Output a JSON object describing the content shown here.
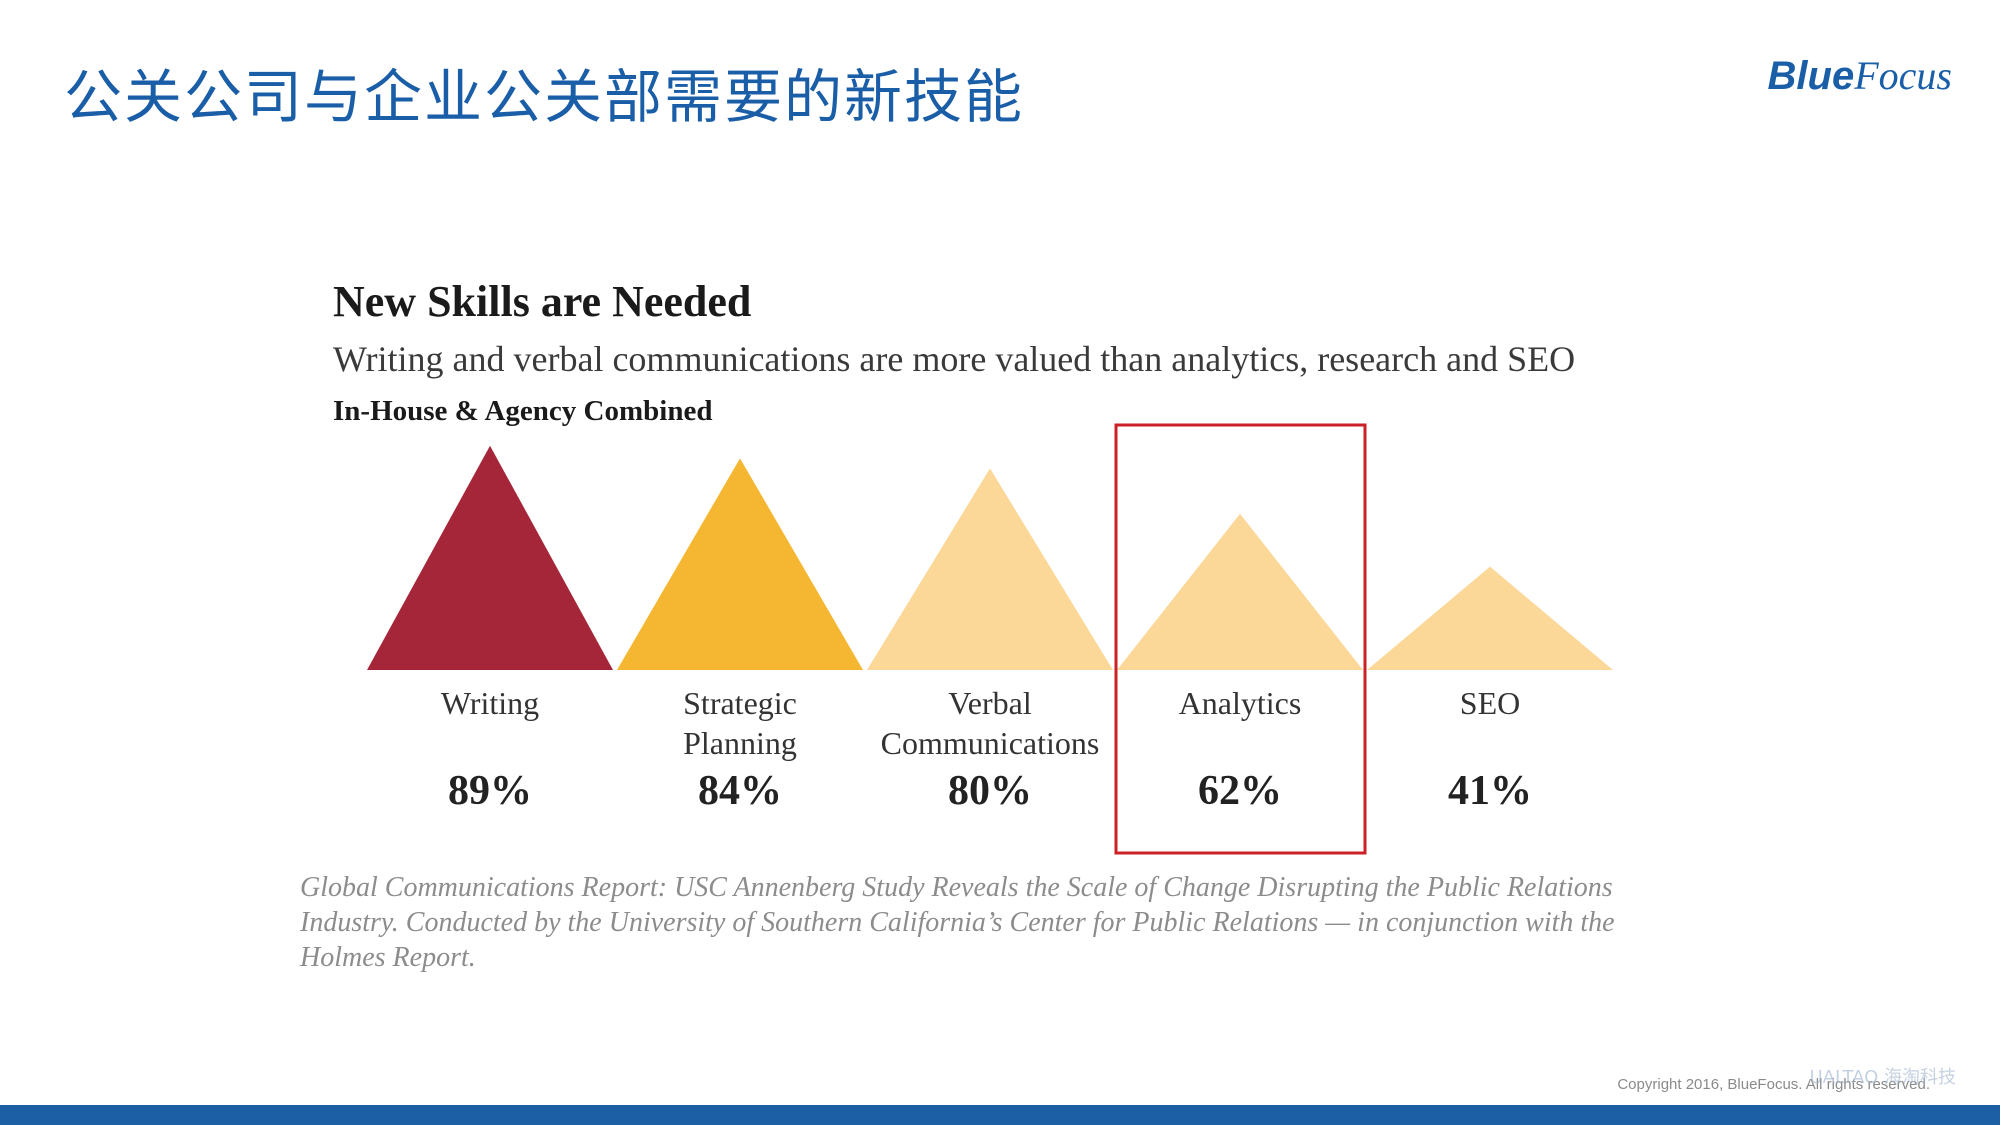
{
  "slide": {
    "title": "公关公司与企业公关部需要的新技能",
    "logo_blue": "Blue",
    "logo_focus": "Focus",
    "copyright": "Copyright 2016, BlueFocus. All rights reserved.",
    "watermark": "UALTAO 海淘科技"
  },
  "chart_data": {
    "type": "bar",
    "mark_shape": "triangle",
    "title": "New Skills are Needed",
    "subtitle": "Writing and verbal communications are more valued than analytics, research and SEO",
    "group_label": "In-House & Agency Combined",
    "categories": [
      [
        "Writing"
      ],
      [
        "Strategic",
        "Planning"
      ],
      [
        "Verbal",
        "Communications"
      ],
      [
        "Analytics"
      ],
      [
        "SEO"
      ]
    ],
    "values": [
      89,
      84,
      80,
      62,
      41
    ],
    "value_labels": [
      "89%",
      "84%",
      "80%",
      "62%",
      "41%"
    ],
    "colors": [
      "#a52639",
      "#f5b731",
      "#fcd898",
      "#fcd898",
      "#fcd898"
    ],
    "highlight_index": 3,
    "highlight_color": "#cc1f27",
    "ylim": [
      0,
      100
    ],
    "xlabel": "",
    "ylabel": ""
  },
  "source": "Global Communications Report: USC Annenberg Study Reveals the Scale of Change Disrupting the Public Relations Industry. Conducted by the University of Southern California’s Center for Public Relations — in conjunction with the Holmes Report."
}
